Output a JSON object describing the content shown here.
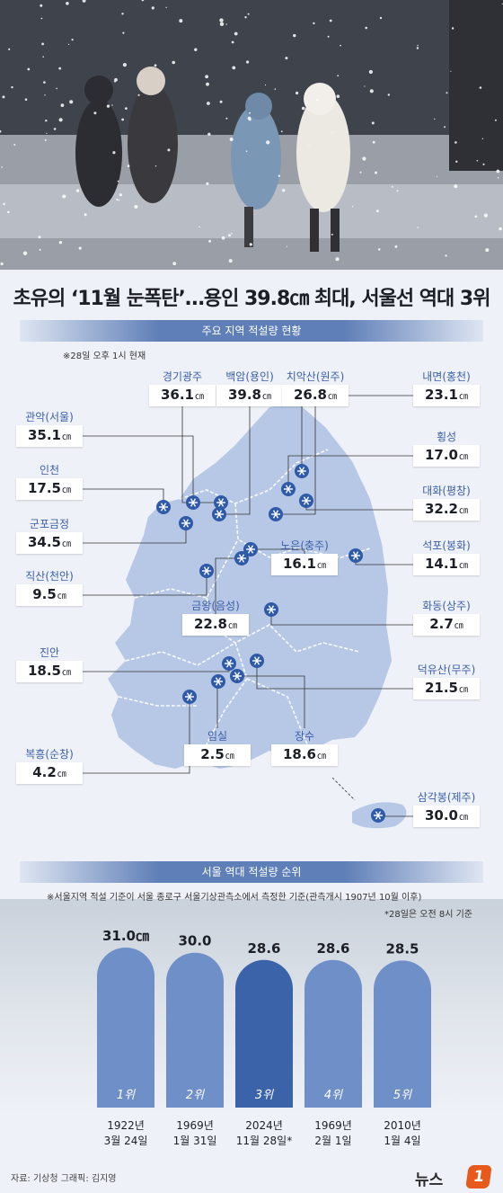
{
  "headline": "초유의 ‘11월 눈폭탄’…용인 39.8㎝ 최대, 서울선 역대 3위",
  "map_section": {
    "title": "주요 지역 적설량 현황",
    "note": "※28일 오후 1시 현재",
    "unit": "㎝",
    "regions": [
      {
        "name": "경기광주",
        "value": "36.1"
      },
      {
        "name": "백암(용인)",
        "value": "39.8"
      },
      {
        "name": "치악산(원주)",
        "value": "26.8"
      },
      {
        "name": "내면(홍천)",
        "value": "23.1"
      },
      {
        "name": "관악(서울)",
        "value": "35.1"
      },
      {
        "name": "횡성",
        "value": "17.0"
      },
      {
        "name": "인천",
        "value": "17.5"
      },
      {
        "name": "대화(평창)",
        "value": "32.2"
      },
      {
        "name": "군포금정",
        "value": "34.5"
      },
      {
        "name": "노은(충주)",
        "value": "16.1"
      },
      {
        "name": "석포(봉화)",
        "value": "14.1"
      },
      {
        "name": "직산(천안)",
        "value": "9.5"
      },
      {
        "name": "금왕(음성)",
        "value": "22.8"
      },
      {
        "name": "화동(상주)",
        "value": "2.7"
      },
      {
        "name": "진안",
        "value": "18.5"
      },
      {
        "name": "덕유산(무주)",
        "value": "21.5"
      },
      {
        "name": "임실",
        "value": "2.5"
      },
      {
        "name": "장수",
        "value": "18.6"
      },
      {
        "name": "복흥(순창)",
        "value": "4.2"
      },
      {
        "name": "삼각봉(제주)",
        "value": "30.0"
      }
    ]
  },
  "rank_section": {
    "title": "서울 역대 적설량 순위",
    "note": "※서울지역 적설 기준이 서울 종로구 서울기상관측소에서 측정한 기준(관측개시 1907년 10월 이후)",
    "note2": "*28일은 오전 8시 기준"
  },
  "chart_data": {
    "type": "bar",
    "categories": [
      "1922년 3월 24일",
      "1969년 1월 31일",
      "2024년 11월 28일*",
      "1969년 2월 1일",
      "2010년 1월 4일"
    ],
    "values": [
      31.0,
      30.0,
      28.6,
      28.6,
      28.5
    ],
    "value_labels": [
      "31.0㎝",
      "30.0",
      "28.6",
      "28.6",
      "28.5"
    ],
    "ranks": [
      "1위",
      "2위",
      "3위",
      "4위",
      "5위"
    ],
    "dates": [
      [
        "1922년",
        "3월 24일"
      ],
      [
        "1969년",
        "1월 31일"
      ],
      [
        "2024년",
        "11월 28일*"
      ],
      [
        "1969년",
        "2월 1일"
      ],
      [
        "2010년",
        "1월 4일"
      ]
    ],
    "highlight_index": 2,
    "colors": {
      "bar": "#6f8fc8",
      "highlight": "#3b63aa"
    }
  },
  "footer": {
    "source": "자료: 기상청   그래픽: 김지영",
    "logo_text": "뉴스",
    "logo_badge": "1"
  }
}
